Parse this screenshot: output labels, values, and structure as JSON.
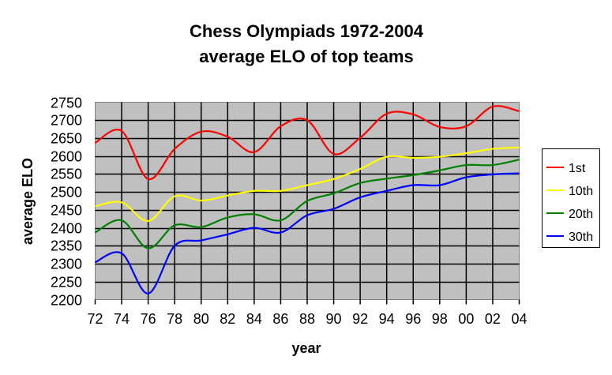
{
  "chart_data": {
    "type": "line",
    "title": [
      "Chess Olympiads 1972-2004",
      "average ELO of top teams"
    ],
    "xlabel": "year",
    "ylabel": "average ELO",
    "x": [
      "72",
      "74",
      "76",
      "78",
      "80",
      "82",
      "84",
      "86",
      "88",
      "90",
      "92",
      "94",
      "96",
      "98",
      "00",
      "02",
      "04"
    ],
    "ylim": [
      2200,
      2750
    ],
    "yticks": [
      2200,
      2250,
      2300,
      2350,
      2400,
      2450,
      2500,
      2550,
      2600,
      2650,
      2700,
      2750
    ],
    "grid": true,
    "legend_position": "right",
    "series": [
      {
        "name": "1st",
        "color": "#ff0000",
        "values": [
          2637,
          2670,
          2536,
          2620,
          2668,
          2654,
          2611,
          2683,
          2700,
          2606,
          2651,
          2718,
          2716,
          2681,
          2683,
          2738,
          2725
        ]
      },
      {
        "name": "10th",
        "color": "#ffff00",
        "values": [
          2460,
          2471,
          2419,
          2488,
          2476,
          2490,
          2503,
          2503,
          2519,
          2536,
          2564,
          2598,
          2595,
          2598,
          2608,
          2620,
          2624
        ]
      },
      {
        "name": "20th",
        "color": "#008000",
        "values": [
          2387,
          2421,
          2343,
          2407,
          2402,
          2429,
          2438,
          2421,
          2475,
          2496,
          2525,
          2537,
          2547,
          2560,
          2575,
          2575,
          2590
        ]
      },
      {
        "name": "30th",
        "color": "#0000ff",
        "values": [
          2304,
          2329,
          2217,
          2350,
          2365,
          2382,
          2400,
          2387,
          2435,
          2453,
          2485,
          2503,
          2519,
          2519,
          2541,
          2549,
          2552
        ]
      }
    ]
  }
}
